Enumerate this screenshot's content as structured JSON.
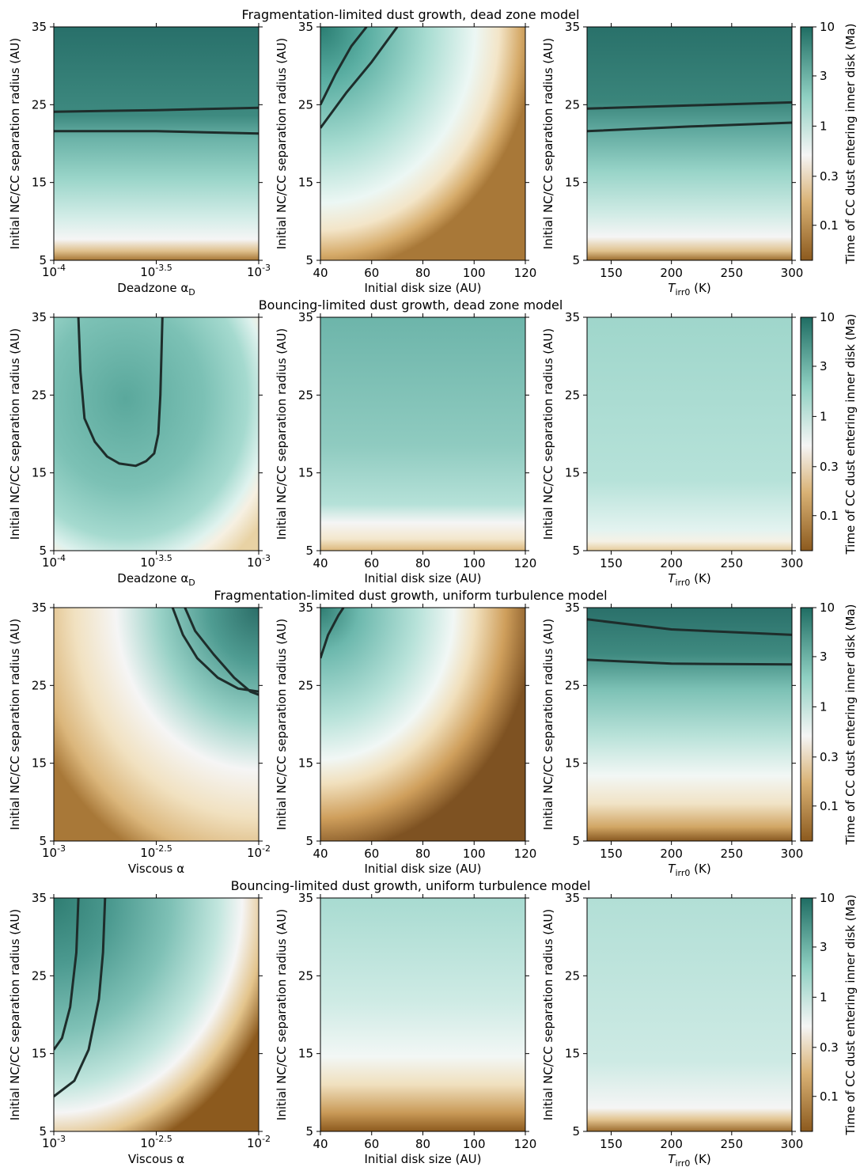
{
  "figure": {
    "row_titles": [
      "Fragmentation-limited dust growth,  dead zone model",
      "Bouncing-limited dust growth,  dead zone model",
      "Fragmentation-limited dust growth,  uniform turbulence model",
      "Bouncing-limited dust growth,  uniform turbulence model"
    ],
    "y_label": "Initial NC/CC separation radius (AU)",
    "colorbar_label": "Time of CC dust entering inner disk (Ma)",
    "colorbar_ticks": [
      "10",
      "3",
      "1",
      "0.3",
      "0.1"
    ],
    "colormap": {
      "low": "#8c5a1e",
      "mid": "#f5f5f5",
      "high": "#1f6d63"
    }
  },
  "chart_data": [
    {
      "type": "heatmap",
      "title": "Fragmentation-limited dust growth,  dead zone model",
      "xlabel": "Deadzone αD",
      "ylabel": "Initial NC/CC separation radius (AU)",
      "x_scale": "log",
      "xlim": [
        -4,
        -3
      ],
      "x_ticks": [
        -4,
        -3.5,
        -3
      ],
      "ylim": [
        5,
        35
      ],
      "y_ticks": [
        5,
        15,
        25,
        35
      ],
      "colorbar": "Time of CC dust entering inner disk (Ma)",
      "contours": [
        [
          [
            -4,
            24.1
          ],
          [
            -3.5,
            24.3
          ],
          [
            -3,
            24.6
          ]
        ],
        [
          [
            -4,
            21.6
          ],
          [
            -3.5,
            21.6
          ],
          [
            -3,
            21.3
          ]
        ]
      ]
    },
    {
      "type": "heatmap",
      "title": "",
      "xlabel": "Initial disk size (AU)",
      "ylabel": "Initial NC/CC separation radius (AU)",
      "xlim": [
        40,
        120
      ],
      "x_ticks": [
        40,
        60,
        80,
        100,
        120
      ],
      "ylim": [
        5,
        35
      ],
      "y_ticks": [
        5,
        15,
        25,
        35
      ],
      "contours": [
        [
          [
            40,
            25
          ],
          [
            46,
            29
          ],
          [
            52,
            32.5
          ],
          [
            58,
            35
          ]
        ],
        [
          [
            40,
            22
          ],
          [
            50,
            26.5
          ],
          [
            60,
            30.5
          ],
          [
            70,
            35
          ]
        ]
      ]
    },
    {
      "type": "heatmap",
      "title": "",
      "xlabel": "Tirr0 (K)",
      "ylabel": "Initial NC/CC separation radius (AU)",
      "xlim": [
        130,
        300
      ],
      "x_ticks": [
        150,
        200,
        250,
        300
      ],
      "ylim": [
        5,
        35
      ],
      "y_ticks": [
        5,
        15,
        25,
        35
      ],
      "contours": [
        [
          [
            130,
            24.5
          ],
          [
            215,
            24.9
          ],
          [
            300,
            25.3
          ]
        ],
        [
          [
            130,
            21.6
          ],
          [
            215,
            22.2
          ],
          [
            300,
            22.7
          ]
        ]
      ]
    },
    {
      "type": "heatmap",
      "title": "Bouncing-limited dust growth,  dead zone model",
      "xlabel": "Deadzone αD",
      "ylabel": "Initial NC/CC separation radius (AU)",
      "x_scale": "log",
      "xlim": [
        -4,
        -3
      ],
      "x_ticks": [
        -4,
        -3.5,
        -3
      ],
      "ylim": [
        5,
        35
      ],
      "y_ticks": [
        5,
        15,
        25,
        35
      ],
      "contours": [
        [
          [
            -3.88,
            35
          ],
          [
            -3.87,
            28
          ],
          [
            -3.85,
            22
          ],
          [
            -3.8,
            19
          ],
          [
            -3.74,
            17.1
          ],
          [
            -3.68,
            16.2
          ],
          [
            -3.6,
            15.9
          ],
          [
            -3.55,
            16.5
          ],
          [
            -3.51,
            17.5
          ],
          [
            -3.49,
            20
          ],
          [
            -3.48,
            25
          ],
          [
            -3.47,
            35
          ]
        ]
      ]
    },
    {
      "type": "heatmap",
      "title": "",
      "xlabel": "Initial disk size (AU)",
      "ylabel": "Initial NC/CC separation radius (AU)",
      "xlim": [
        40,
        120
      ],
      "x_ticks": [
        40,
        60,
        80,
        100,
        120
      ],
      "ylim": [
        5,
        35
      ],
      "y_ticks": [
        5,
        15,
        25,
        35
      ],
      "contours": []
    },
    {
      "type": "heatmap",
      "title": "",
      "xlabel": "Tirr0 (K)",
      "ylabel": "Initial NC/CC separation radius (AU)",
      "xlim": [
        130,
        300
      ],
      "x_ticks": [
        150,
        200,
        250,
        300
      ],
      "ylim": [
        5,
        35
      ],
      "y_ticks": [
        5,
        15,
        25,
        35
      ],
      "contours": []
    },
    {
      "type": "heatmap",
      "title": "Fragmentation-limited dust growth,  uniform turbulence model",
      "xlabel": "Viscous α",
      "ylabel": "Initial NC/CC separation radius (AU)",
      "x_scale": "log",
      "xlim": [
        -3,
        -2
      ],
      "x_ticks": [
        -3,
        -2.5,
        -2
      ],
      "ylim": [
        5,
        35
      ],
      "y_ticks": [
        5,
        15,
        25,
        35
      ],
      "contours": [
        [
          [
            -2.42,
            35
          ],
          [
            -2.37,
            31.5
          ],
          [
            -2.3,
            28.5
          ],
          [
            -2.2,
            26
          ],
          [
            -2.1,
            24.6
          ],
          [
            -2,
            24.2
          ]
        ],
        [
          [
            -2.36,
            35
          ],
          [
            -2.31,
            32
          ],
          [
            -2.22,
            29
          ],
          [
            -2.12,
            26
          ],
          [
            -2.04,
            24.2
          ],
          [
            -2,
            23.8
          ]
        ]
      ]
    },
    {
      "type": "heatmap",
      "title": "",
      "xlabel": "Initial disk size (AU)",
      "ylabel": "Initial NC/CC separation radius (AU)",
      "xlim": [
        40,
        120
      ],
      "x_ticks": [
        40,
        60,
        80,
        100,
        120
      ],
      "ylim": [
        5,
        35
      ],
      "y_ticks": [
        5,
        15,
        25,
        35
      ],
      "contours": [
        [
          [
            40,
            28.5
          ],
          [
            43,
            31.5
          ],
          [
            47,
            34
          ],
          [
            49,
            35
          ]
        ]
      ]
    },
    {
      "type": "heatmap",
      "title": "",
      "xlabel": "Tirr0 (K)",
      "ylabel": "Initial NC/CC separation radius (AU)",
      "xlim": [
        130,
        300
      ],
      "x_ticks": [
        150,
        200,
        250,
        300
      ],
      "ylim": [
        5,
        35
      ],
      "y_ticks": [
        5,
        15,
        25,
        35
      ],
      "contours": [
        [
          [
            130,
            33.5
          ],
          [
            200,
            32.2
          ],
          [
            300,
            31.5
          ]
        ],
        [
          [
            130,
            28.3
          ],
          [
            200,
            27.8
          ],
          [
            300,
            27.7
          ]
        ]
      ]
    },
    {
      "type": "heatmap",
      "title": "Bouncing-limited dust growth,  uniform turbulence model",
      "xlabel": "Viscous α",
      "ylabel": "Initial NC/CC separation radius (AU)",
      "x_scale": "log",
      "xlim": [
        -3,
        -2
      ],
      "x_ticks": [
        -3,
        -2.5,
        -2
      ],
      "ylim": [
        5,
        35
      ],
      "y_ticks": [
        5,
        15,
        25,
        35
      ],
      "contours": [
        [
          [
            -2.88,
            35
          ],
          [
            -2.89,
            28
          ],
          [
            -2.92,
            21
          ],
          [
            -2.96,
            17
          ],
          [
            -3,
            15.5
          ]
        ],
        [
          [
            -2.75,
            35
          ],
          [
            -2.76,
            28
          ],
          [
            -2.78,
            22
          ],
          [
            -2.83,
            15.5
          ],
          [
            -2.9,
            11.5
          ],
          [
            -3,
            9.5
          ]
        ]
      ]
    },
    {
      "type": "heatmap",
      "title": "",
      "xlabel": "Initial disk size (AU)",
      "ylabel": "Initial NC/CC separation radius (AU)",
      "xlim": [
        40,
        120
      ],
      "x_ticks": [
        40,
        60,
        80,
        100,
        120
      ],
      "ylim": [
        5,
        35
      ],
      "y_ticks": [
        5,
        15,
        25,
        35
      ],
      "contours": []
    },
    {
      "type": "heatmap",
      "title": "",
      "xlabel": "Tirr0 (K)",
      "ylabel": "Initial NC/CC separation radius (AU)",
      "xlim": [
        130,
        300
      ],
      "x_ticks": [
        150,
        200,
        250,
        300
      ],
      "ylim": [
        5,
        35
      ],
      "y_ticks": [
        5,
        15,
        25,
        35
      ],
      "contours": []
    }
  ]
}
